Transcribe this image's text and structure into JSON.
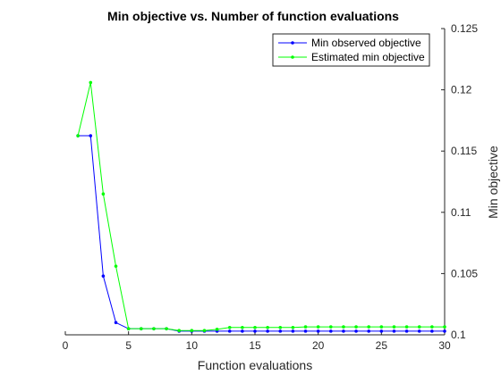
{
  "chart_data": {
    "type": "line",
    "title": "Min objective vs. Number of function evaluations",
    "xlabel": "Function evaluations",
    "ylabel": "Min objective",
    "xlim": [
      0,
      30
    ],
    "ylim": [
      0.1,
      0.125
    ],
    "xticks": [
      0,
      5,
      10,
      15,
      20,
      25,
      30
    ],
    "yticks": [
      0.1,
      0.105,
      0.11,
      0.115,
      0.12,
      0.125
    ],
    "xtick_labels": [
      "0",
      "5",
      "10",
      "15",
      "20",
      "25",
      "30"
    ],
    "ytick_labels": [
      "0.1",
      "0.105",
      "0.11",
      "0.115",
      "0.12",
      "0.125"
    ],
    "y_axis_location": "right",
    "grid": false,
    "legend_location": "top-right",
    "x": [
      1,
      2,
      3,
      4,
      5,
      6,
      7,
      8,
      9,
      10,
      11,
      12,
      13,
      14,
      15,
      16,
      17,
      18,
      19,
      20,
      21,
      22,
      23,
      24,
      25,
      26,
      27,
      28,
      29,
      30
    ],
    "series": [
      {
        "name": "Min observed objective",
        "color": "#0000ff",
        "marker": "dot",
        "values": [
          0.11625,
          0.11625,
          0.1048,
          0.101,
          0.1005,
          0.1005,
          0.1005,
          0.1005,
          0.1003,
          0.1003,
          0.1003,
          0.1003,
          0.1003,
          0.1003,
          0.1003,
          0.1003,
          0.1003,
          0.1003,
          0.1003,
          0.1003,
          0.1003,
          0.1003,
          0.1003,
          0.1003,
          0.1003,
          0.1003,
          0.1003,
          0.1003,
          0.1003,
          0.1003
        ]
      },
      {
        "name": "Estimated min objective",
        "color": "#00ff00",
        "marker": "dot",
        "values": [
          0.11625,
          0.1206,
          0.1115,
          0.1056,
          0.1005,
          0.1005,
          0.1005,
          0.1005,
          0.10035,
          0.10035,
          0.10035,
          0.10045,
          0.1006,
          0.1006,
          0.1006,
          0.1006,
          0.1006,
          0.1006,
          0.10065,
          0.10065,
          0.10065,
          0.10065,
          0.10065,
          0.10065,
          0.10065,
          0.10065,
          0.10065,
          0.10065,
          0.10065,
          0.10065
        ]
      }
    ]
  }
}
